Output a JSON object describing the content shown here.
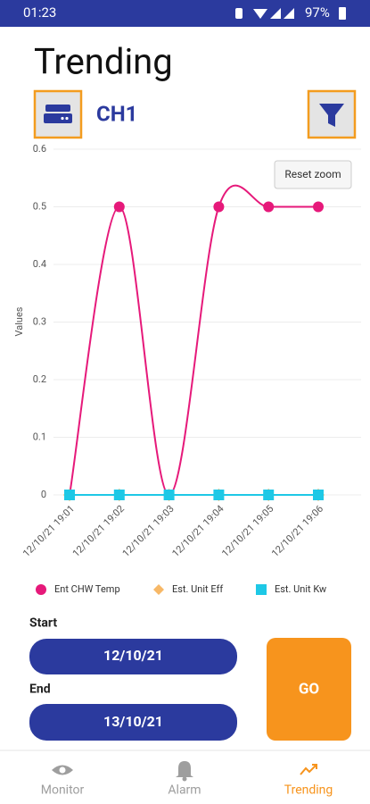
{
  "status_bar": {
    "time": "01:23",
    "battery": "97%"
  },
  "header": {
    "title": "Trending",
    "device": "CH1"
  },
  "chart_data": {
    "type": "line",
    "ylabel": "Values",
    "reset_zoom": "Reset zoom",
    "categories": [
      "12/10/21 19:01",
      "12/10/21 19:02",
      "12/10/21 19:03",
      "12/10/21 19:04",
      "12/10/21 19:05",
      "12/10/21 19:06"
    ],
    "series": [
      {
        "name": "Ent CHW Temp",
        "color": "#e6197a",
        "marker": "circle",
        "values": [
          0,
          0.5,
          0,
          0.5,
          0.5,
          0.5
        ]
      },
      {
        "name": "Est. Unit Eff",
        "color": "#f7b867",
        "marker": "diamond",
        "values": [
          0,
          0,
          0,
          0,
          0,
          0
        ]
      },
      {
        "name": "Est. Unit Kw",
        "color": "#1ec8e6",
        "marker": "square",
        "values": [
          0,
          0,
          0,
          0,
          0,
          0
        ]
      }
    ],
    "ylim": [
      0,
      0.6
    ],
    "yticks": [
      0,
      0.1,
      0.2,
      0.3,
      0.4,
      0.5,
      0.6
    ],
    "grid": true,
    "legend": "bottom"
  },
  "controls": {
    "start_label": "Start",
    "start_date": "12/10/21",
    "end_label": "End",
    "end_date": "13/10/21",
    "go": "GO"
  },
  "nav": {
    "items": [
      "Monitor",
      "Alarm",
      "Trending"
    ],
    "active": 2
  }
}
